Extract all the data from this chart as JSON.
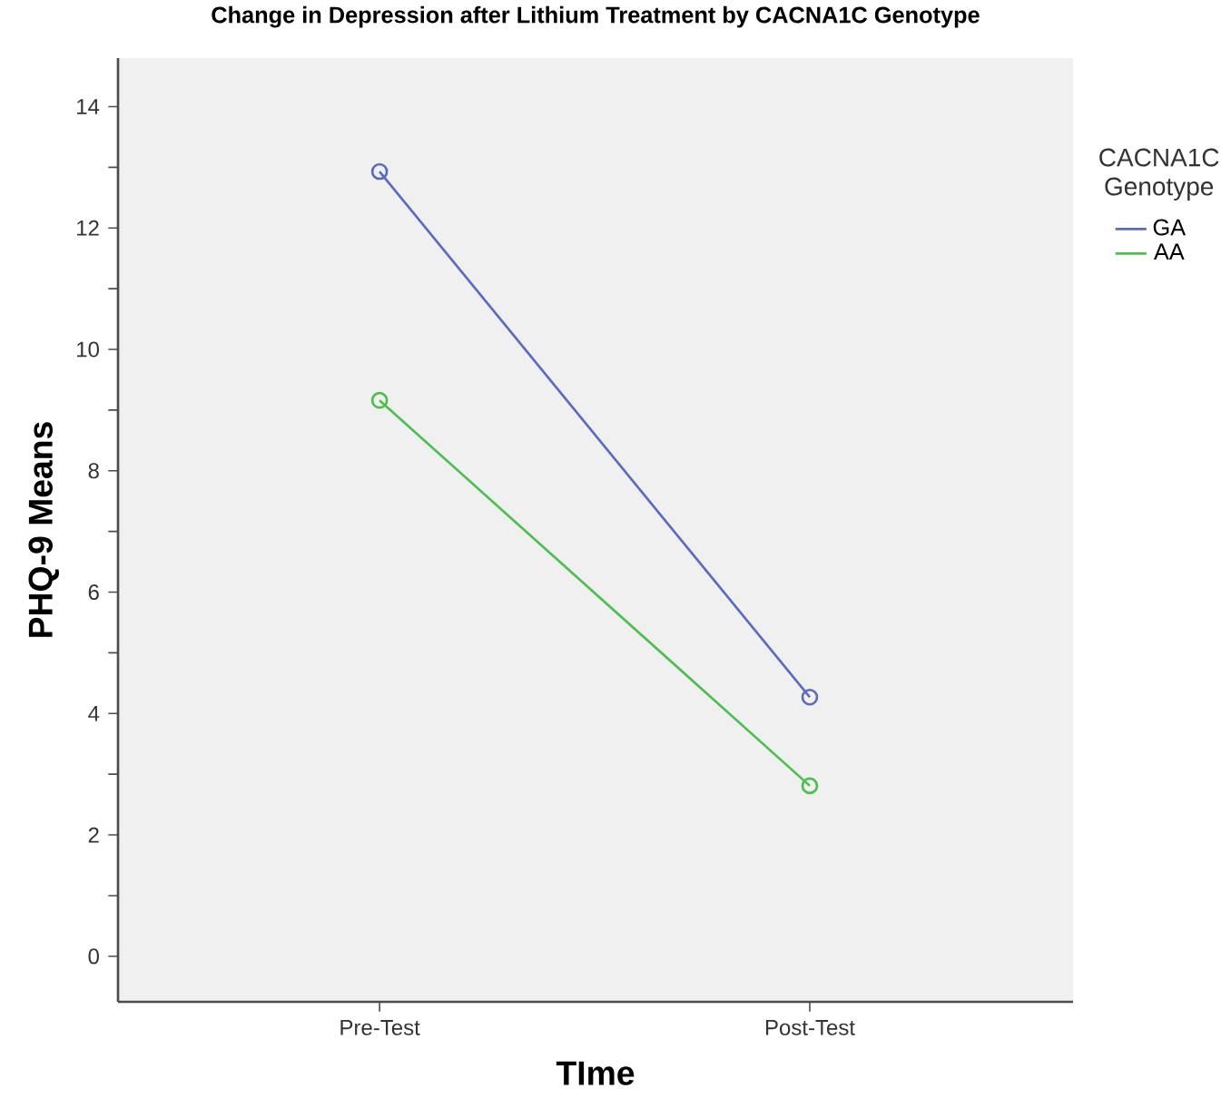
{
  "chart_data": {
    "type": "line",
    "title": "Change in Depression after Lithium Treatment by CACNA1C Genotype",
    "xlabel": "TIme",
    "ylabel": "PHQ-9 Means",
    "legend_title": "CACNA1C Genotype",
    "categories": [
      "Pre-Test",
      "Post-Test"
    ],
    "series": [
      {
        "name": "GA",
        "color": "#5a6bc0",
        "values": [
          12.93,
          4.27
        ]
      },
      {
        "name": "AA",
        "color": "#4cbf4c",
        "values": [
          9.16,
          2.81
        ]
      }
    ],
    "ylim": [
      -0.75,
      14.8
    ],
    "yticks": [
      0,
      {
        "value": 1,
        "label": null
      },
      2,
      {
        "value": 3,
        "label": null
      },
      4,
      {
        "value": 5,
        "label": null
      },
      6,
      {
        "value": 7,
        "label": null
      },
      8,
      {
        "value": 9,
        "label": null
      },
      10,
      {
        "value": 11,
        "label": null
      },
      12,
      {
        "value": 13,
        "label": null
      },
      14
    ],
    "marker": "circle",
    "line_style": "solid",
    "legend": "top right",
    "grid": false
  }
}
